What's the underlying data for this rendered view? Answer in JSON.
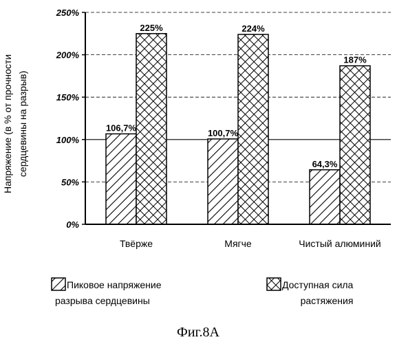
{
  "chart_data": {
    "type": "bar",
    "title": "",
    "xlabel": "",
    "ylabel": "Напряжение (в % от прочности сердцевины на разрыв)",
    "ylabel_lines": [
      "Напряжение (в % от прочности",
      "сердцевины на разрыв)"
    ],
    "ylim": [
      0,
      250
    ],
    "yticks": [
      0,
      50,
      100,
      150,
      200,
      250
    ],
    "ytick_labels": [
      "0%",
      "50%",
      "100%",
      "150%",
      "200%",
      "250%"
    ],
    "grid": true,
    "categories": [
      "Твёрже",
      "Мягче",
      "Чистый алюминий"
    ],
    "series": [
      {
        "name": "Пиковое напряжение разрыва сердцевины",
        "name_lines": [
          "Пиковое напряжение",
          "разрыва сердцевины"
        ],
        "pattern": "diagonal-hatch",
        "values": [
          106.7,
          100.7,
          64.3
        ],
        "labels": [
          "106,7%",
          "100,7%",
          "64,3%"
        ]
      },
      {
        "name": "Доступная сила растяжения",
        "name_lines": [
          "Доступная сила",
          "растяжения"
        ],
        "pattern": "crosshatch",
        "values": [
          225,
          224,
          187
        ],
        "labels": [
          "225%",
          "224%",
          "187%"
        ]
      }
    ],
    "legend_position": "bottom"
  },
  "caption": "Фиг.8A"
}
